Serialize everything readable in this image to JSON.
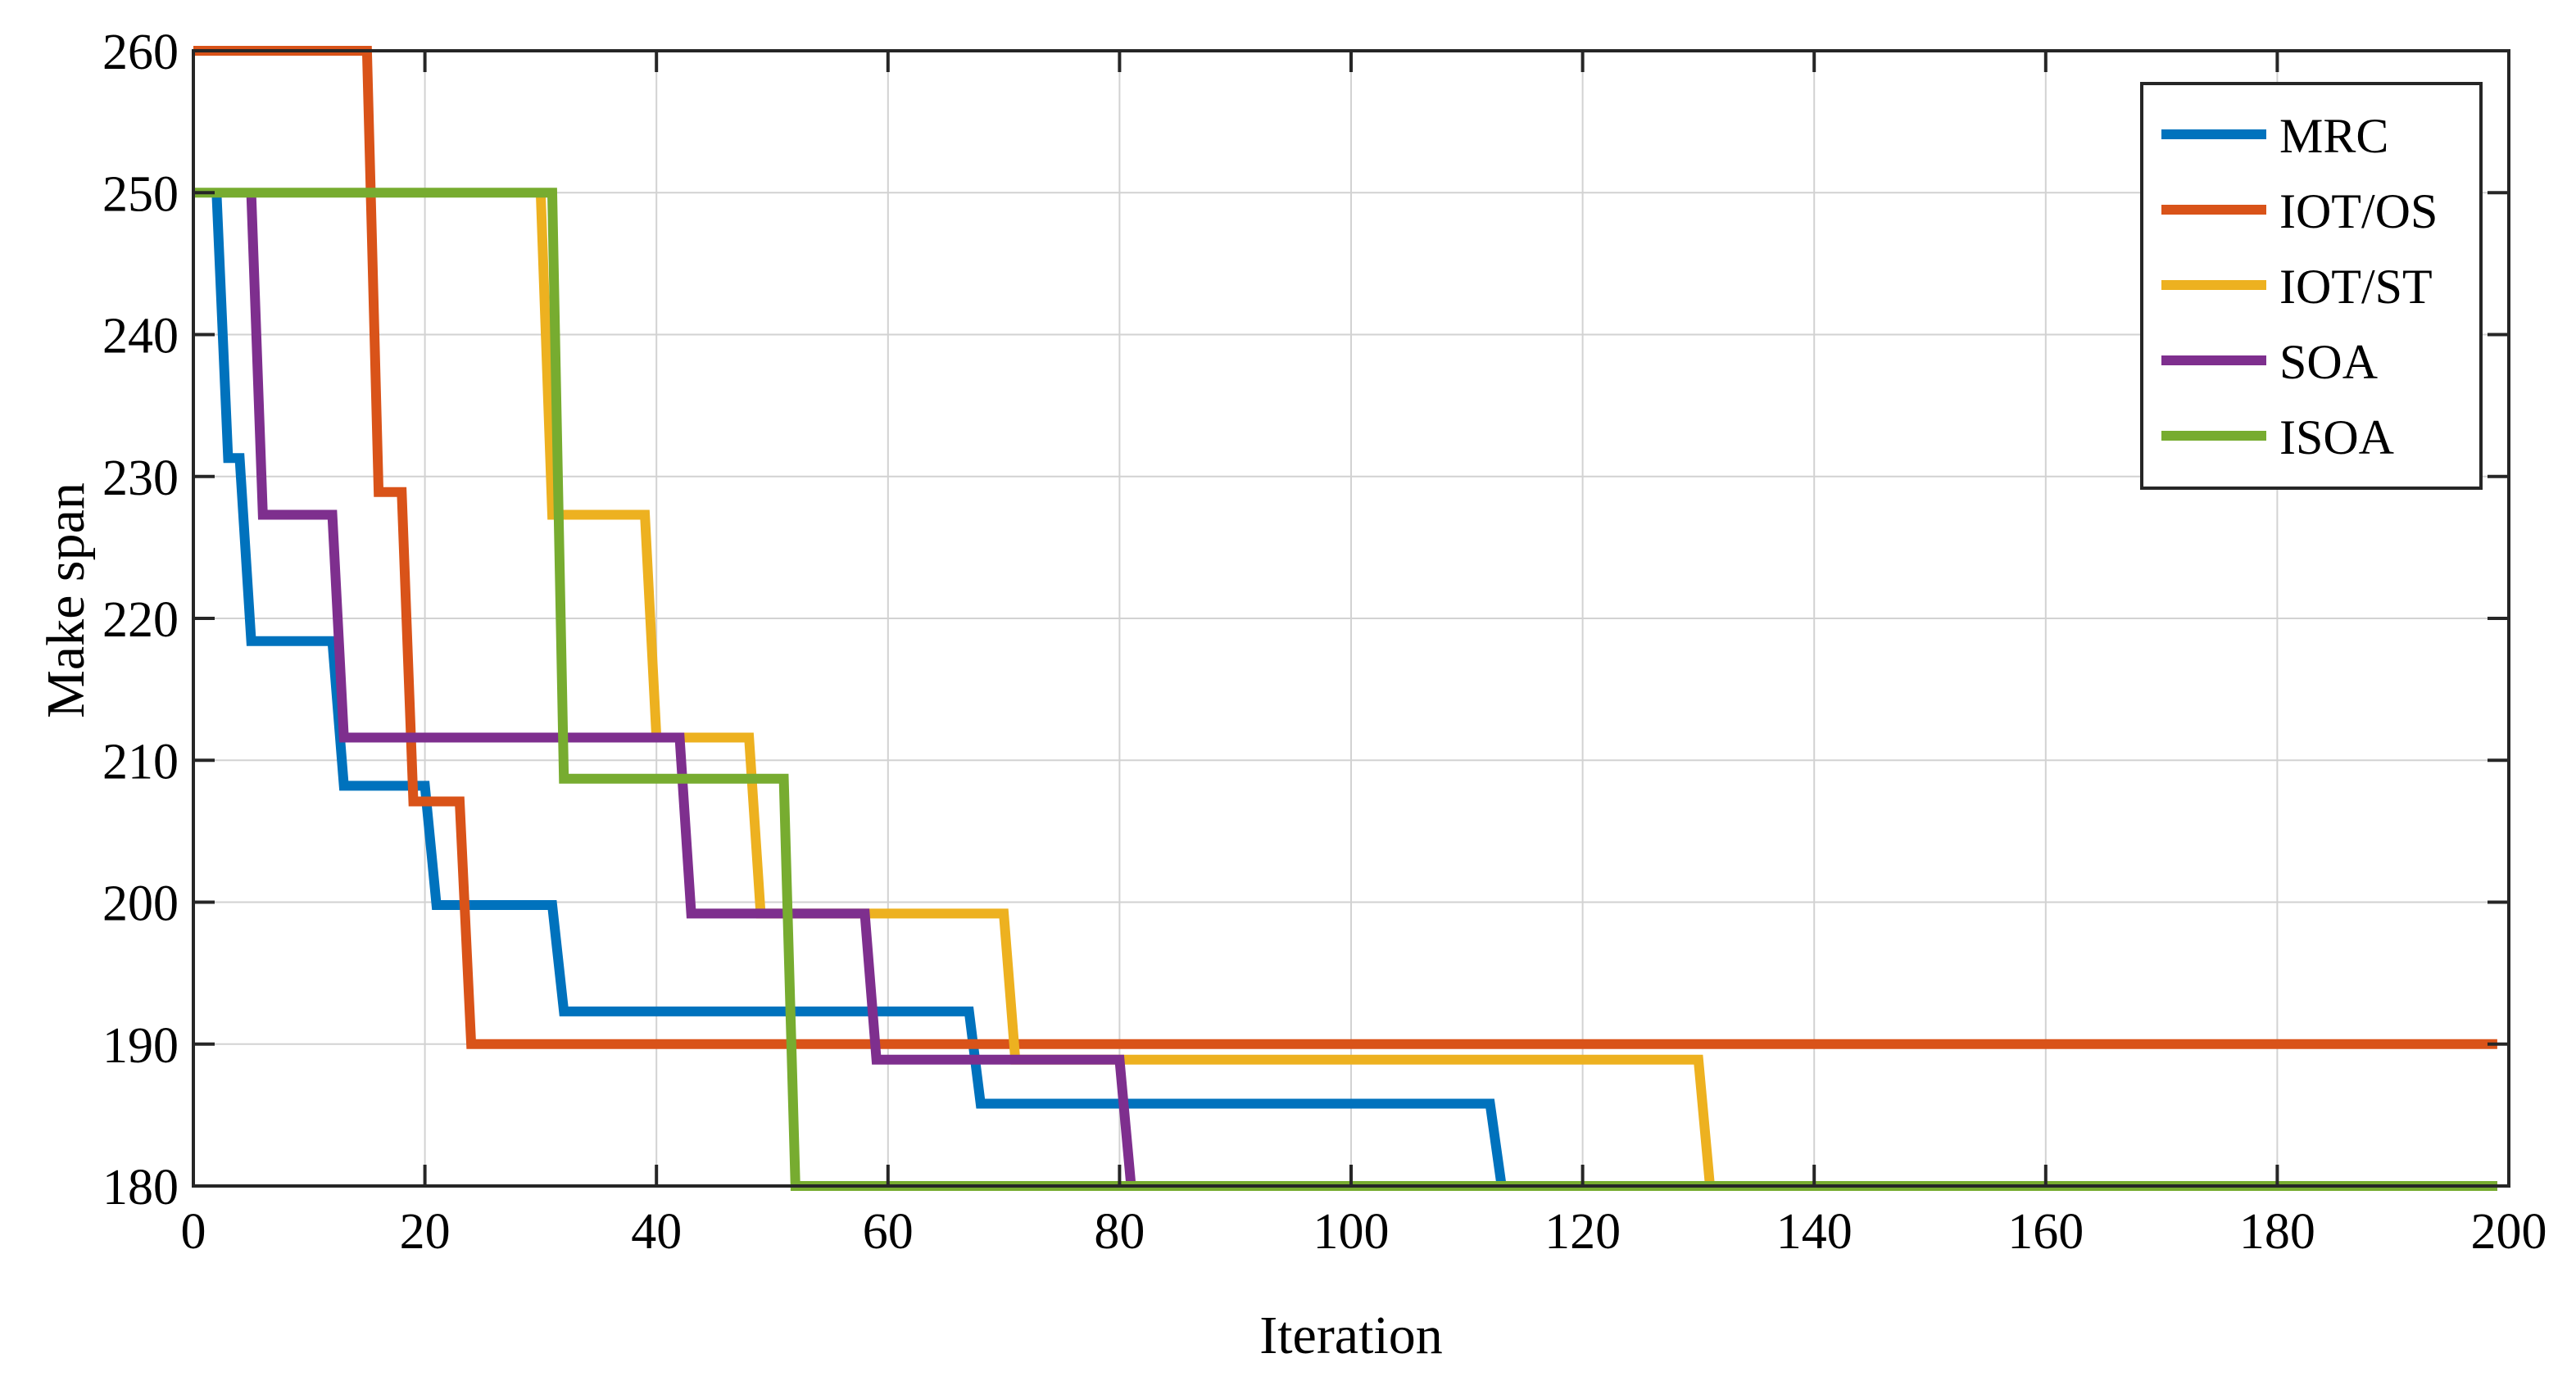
{
  "chart_data": {
    "type": "line",
    "title": "",
    "xlabel": "Iteration",
    "ylabel": "Make span",
    "xlim": [
      0,
      200
    ],
    "ylim": [
      180,
      260
    ],
    "xticks": [
      0,
      20,
      40,
      60,
      80,
      100,
      120,
      140,
      160,
      180,
      200
    ],
    "yticks": [
      180,
      190,
      200,
      210,
      220,
      230,
      240,
      250,
      260
    ],
    "grid": true,
    "legend_position": "top-right",
    "series": [
      {
        "name": "MRC",
        "color": "#0072BD",
        "points": [
          [
            2,
            250
          ],
          [
            3,
            231.3
          ],
          [
            4,
            231.3
          ],
          [
            5,
            218.4
          ],
          [
            12,
            218.4
          ],
          [
            13,
            208.2
          ],
          [
            20,
            208.2
          ],
          [
            21,
            199.8
          ],
          [
            31,
            199.8
          ],
          [
            32,
            192.3
          ],
          [
            67,
            192.3
          ],
          [
            68,
            185.8
          ],
          [
            112,
            185.8
          ],
          [
            113,
            180
          ],
          [
            199,
            180
          ]
        ]
      },
      {
        "name": "IOT/OS",
        "color": "#D95319",
        "points": [
          [
            0,
            260
          ],
          [
            15,
            260
          ],
          [
            16,
            228.9
          ],
          [
            18,
            228.9
          ],
          [
            19,
            207.1
          ],
          [
            23,
            207.1
          ],
          [
            24,
            190
          ],
          [
            199,
            190
          ]
        ]
      },
      {
        "name": "IOT/ST",
        "color": "#EDB120",
        "points": [
          [
            30,
            250
          ],
          [
            31,
            227.3
          ],
          [
            39,
            227.3
          ],
          [
            40,
            211.6
          ],
          [
            48,
            211.6
          ],
          [
            49,
            199.2
          ],
          [
            70,
            199.2
          ],
          [
            71,
            188.9
          ],
          [
            130,
            188.9
          ],
          [
            131,
            180
          ],
          [
            199,
            180
          ]
        ]
      },
      {
        "name": "SOA",
        "color": "#7E2F8E",
        "points": [
          [
            5,
            250
          ],
          [
            6,
            227.3
          ],
          [
            12,
            227.3
          ],
          [
            13,
            211.6
          ],
          [
            42,
            211.6
          ],
          [
            43,
            199.2
          ],
          [
            58,
            199.2
          ],
          [
            59,
            188.9
          ],
          [
            80,
            188.9
          ],
          [
            81,
            180
          ],
          [
            199,
            180
          ]
        ]
      },
      {
        "name": "ISOA",
        "color": "#77AC30",
        "points": [
          [
            0,
            250
          ],
          [
            31,
            250
          ],
          [
            32,
            208.7
          ],
          [
            51,
            208.7
          ],
          [
            52,
            180
          ],
          [
            199,
            180
          ]
        ]
      }
    ]
  }
}
